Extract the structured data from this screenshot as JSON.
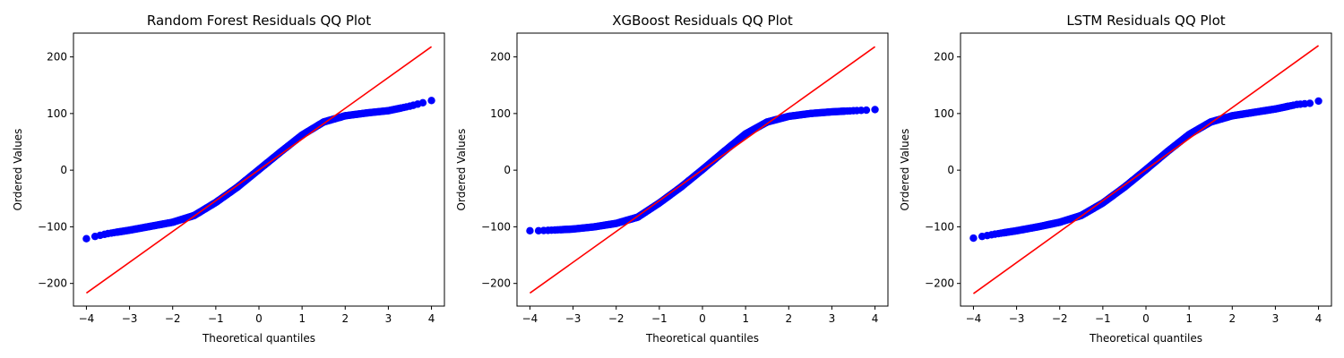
{
  "chart_data": [
    {
      "type": "scatter",
      "title": "Random Forest Residuals QQ Plot",
      "xlabel": "Theoretical quantiles",
      "ylabel": "Ordered Values",
      "xlim": [
        -4.3,
        4.3
      ],
      "ylim": [
        -240,
        242
      ],
      "xticks": [
        -4,
        -3,
        -2,
        -1,
        0,
        1,
        2,
        3,
        4
      ],
      "yticks": [
        -200,
        -100,
        0,
        100,
        200
      ],
      "point_color": "#0000ff",
      "line_color": "#ff0000",
      "grid": false,
      "fit_line": {
        "x": [
          -4,
          4
        ],
        "y": [
          -217,
          218
        ]
      },
      "sample_curve": {
        "x": [
          -4,
          -3.8,
          -3.5,
          -3,
          -2.5,
          -2,
          -1.5,
          -1,
          -0.5,
          0,
          0.5,
          1,
          1.5,
          2,
          2.5,
          3,
          3.5,
          3.8,
          4
        ],
        "y": [
          -121,
          -117,
          -112,
          -106,
          -99,
          -92,
          -80,
          -57,
          -30,
          1,
          32,
          62,
          85,
          96,
          101,
          105,
          113,
          119,
          123
        ]
      }
    },
    {
      "type": "scatter",
      "title": "XGBoost Residuals QQ Plot",
      "xlabel": "Theoretical quantiles",
      "ylabel": "Ordered Values",
      "xlim": [
        -4.3,
        4.3
      ],
      "ylim": [
        -240,
        242
      ],
      "xticks": [
        -4,
        -3,
        -2,
        -1,
        0,
        1,
        2,
        3,
        4
      ],
      "yticks": [
        -200,
        -100,
        0,
        100,
        200
      ],
      "point_color": "#0000ff",
      "line_color": "#ff0000",
      "grid": false,
      "fit_line": {
        "x": [
          -4,
          4
        ],
        "y": [
          -217,
          218
        ]
      },
      "sample_curve": {
        "x": [
          -4,
          -3.8,
          -3.5,
          -3,
          -2.5,
          -2,
          -1.5,
          -1,
          -0.5,
          0,
          0.5,
          1,
          1.5,
          2,
          2.5,
          3,
          3.5,
          3.8,
          4
        ],
        "y": [
          -107,
          -107,
          -106,
          -104,
          -100,
          -94,
          -83,
          -58,
          -30,
          1,
          33,
          64,
          85,
          95,
          100,
          103,
          105,
          106,
          107
        ]
      }
    },
    {
      "type": "scatter",
      "title": "LSTM Residuals QQ Plot",
      "xlabel": "Theoretical quantiles",
      "ylabel": "Ordered Values",
      "xlim": [
        -4.3,
        4.3
      ],
      "ylim": [
        -240,
        242
      ],
      "xticks": [
        -4,
        -3,
        -2,
        -1,
        0,
        1,
        2,
        3,
        4
      ],
      "yticks": [
        -200,
        -100,
        0,
        100,
        200
      ],
      "point_color": "#0000ff",
      "line_color": "#ff0000",
      "grid": false,
      "fit_line": {
        "x": [
          -4,
          4
        ],
        "y": [
          -218,
          220
        ]
      },
      "sample_curve": {
        "x": [
          -4,
          -3.8,
          -3.5,
          -3,
          -2.5,
          -2,
          -1.5,
          -1,
          -0.5,
          0,
          0.5,
          1,
          1.5,
          2,
          2.5,
          3,
          3.5,
          3.8,
          4
        ],
        "y": [
          -120,
          -117,
          -113,
          -107,
          -100,
          -92,
          -80,
          -58,
          -30,
          1,
          33,
          63,
          85,
          96,
          102,
          108,
          116,
          118,
          122
        ]
      }
    }
  ]
}
